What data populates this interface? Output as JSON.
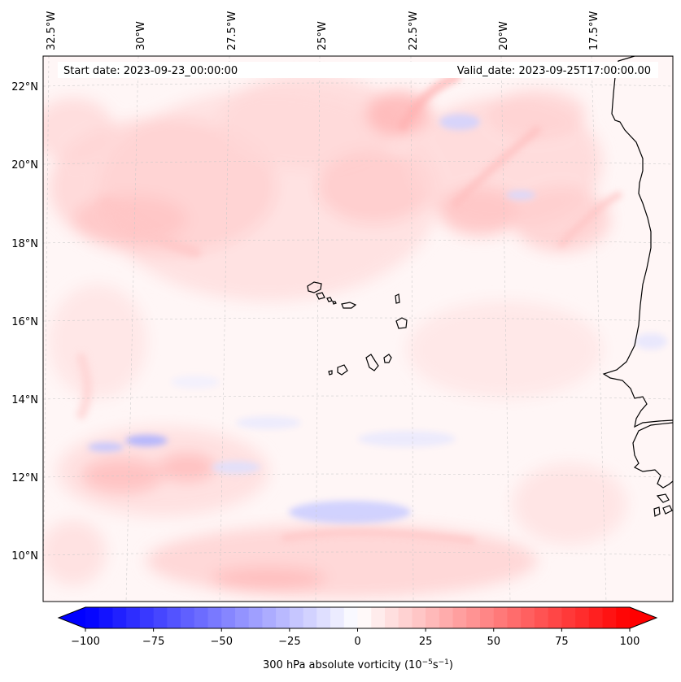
{
  "map": {
    "start_date": "Start date: 2023-09-23_00:00:00",
    "valid_date": "Valid_date: 2023-09-25T17:00:00.00",
    "longitude_labels": [
      "32.5°W",
      "30°W",
      "27.5°W",
      "25°W",
      "22.5°W",
      "20°W",
      "17.5°W"
    ],
    "latitude_labels": [
      "22°N",
      "20°N",
      "18°N",
      "16°N",
      "14°N",
      "12°N",
      "10°N"
    ],
    "field": "300 hPa absolute vorticity",
    "colormap": "bwr",
    "gridlines": true,
    "coastline_color": "#000000"
  },
  "colorbar": {
    "label_text": "300 hPa absolute vorticity (10",
    "label_exp": "−5",
    "label_unit": "s",
    "label_exp2": "−1",
    "label_close": ")",
    "min": -100,
    "max": 100,
    "extend": "both",
    "ticks": [
      "−100",
      "−75",
      "−50",
      "−25",
      "0",
      "25",
      "50",
      "75",
      "100"
    ],
    "colors": {
      "low": "#0000ff",
      "mid": "#ffffff",
      "high": "#ff0000"
    }
  }
}
